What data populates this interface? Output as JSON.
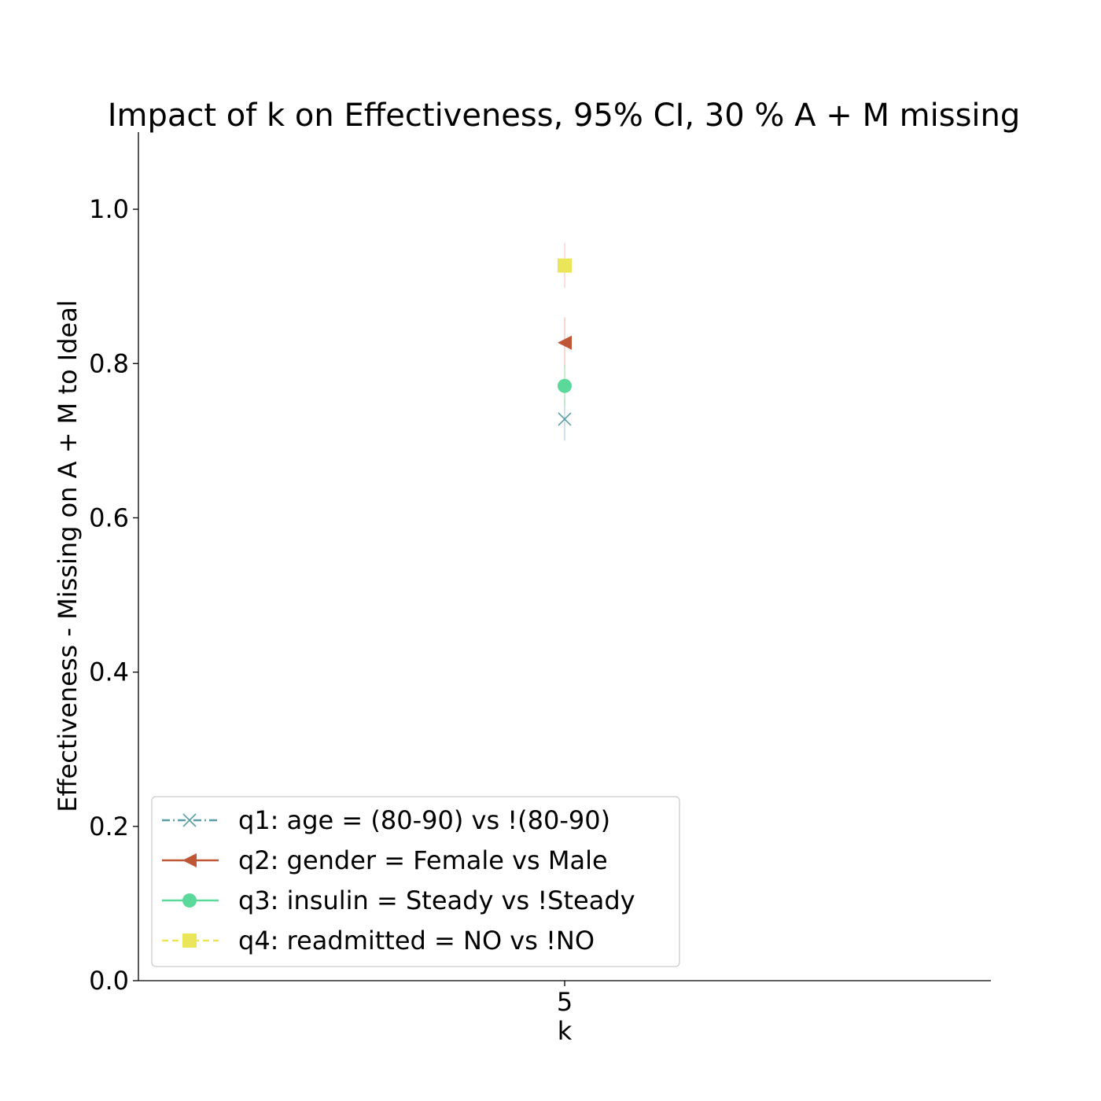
{
  "chart_data": {
    "type": "scatter",
    "title": "Impact of k on Effectiveness, 95% CI, 30 % A + M missing",
    "xlabel": "k",
    "ylabel": "Effectiveness - Missing on A + M to Ideal",
    "x_ticks": [
      "5"
    ],
    "y_ticks": [
      "0.0",
      "0.2",
      "0.4",
      "0.6",
      "0.8",
      "1.0"
    ],
    "ylim": [
      0,
      1.1
    ],
    "grid": false,
    "legend_position": "lower-left",
    "series": [
      {
        "name": "q1: age = (80-90) vs !(80-90)",
        "x": [
          5
        ],
        "y": [
          0.728
        ],
        "ci": [
          [
            0.7,
            0.755
          ]
        ],
        "color": "#5a9ea6",
        "marker": "x",
        "linestyle": "dash-dot"
      },
      {
        "name": "q2: gender = Female vs Male",
        "x": [
          5
        ],
        "y": [
          0.827
        ],
        "ci": [
          [
            0.795,
            0.86
          ]
        ],
        "color": "#bf5636",
        "marker": "triangle-left",
        "linestyle": "solid"
      },
      {
        "name": "q3: insulin = Steady vs !Steady",
        "x": [
          5
        ],
        "y": [
          0.771
        ],
        "ci": [
          [
            0.745,
            0.798
          ]
        ],
        "color": "#5ad99a",
        "marker": "circle",
        "linestyle": "solid"
      },
      {
        "name": "q4: readmitted = NO vs !NO",
        "x": [
          5
        ],
        "y": [
          0.927
        ],
        "ci": [
          [
            0.898,
            0.956
          ]
        ],
        "color": "#ebe55a",
        "marker": "square",
        "linestyle": "dashed"
      }
    ]
  }
}
